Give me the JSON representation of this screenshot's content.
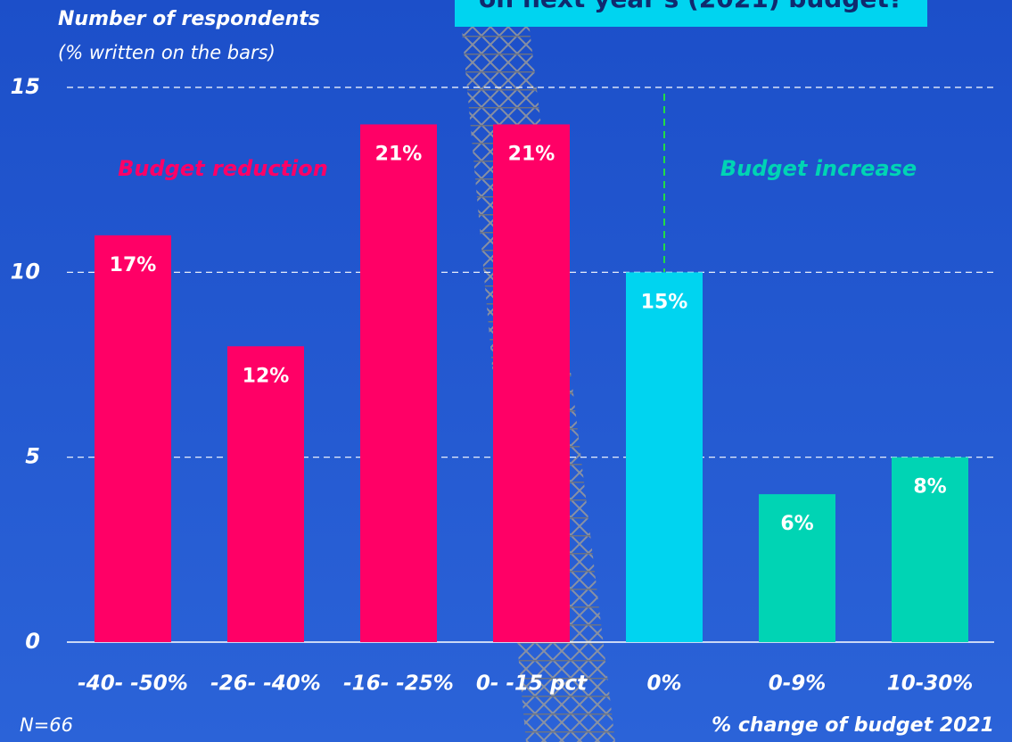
{
  "chart_data": {
    "type": "bar",
    "title": "on next year's (2021) budget?",
    "y_axis_label": "Number of  respondents",
    "y_axis_sublabel": "(% written on the bars)",
    "x_axis_label": "% change of budget 2021",
    "note": "N=66",
    "annotations": [
      "Budget reduction",
      "Budget increase"
    ],
    "categories": [
      "-40- -50%",
      "-26- -40%",
      "-16- -25%",
      "0- -15 pct",
      "0%",
      "0-9%",
      "10-30%"
    ],
    "values": [
      11,
      8,
      14,
      14,
      10,
      4,
      5
    ],
    "value_labels": [
      "17%",
      "12%",
      "21%",
      "21%",
      "15%",
      "6%",
      "8%"
    ],
    "colors": [
      "#ff0066",
      "#ff0066",
      "#ff0066",
      "#ff0066",
      "#00d4f0",
      "#00d4b4",
      "#00d4b4"
    ],
    "ylim": [
      0,
      15
    ],
    "yticks": [
      0,
      5,
      10,
      15
    ],
    "grid": true
  }
}
